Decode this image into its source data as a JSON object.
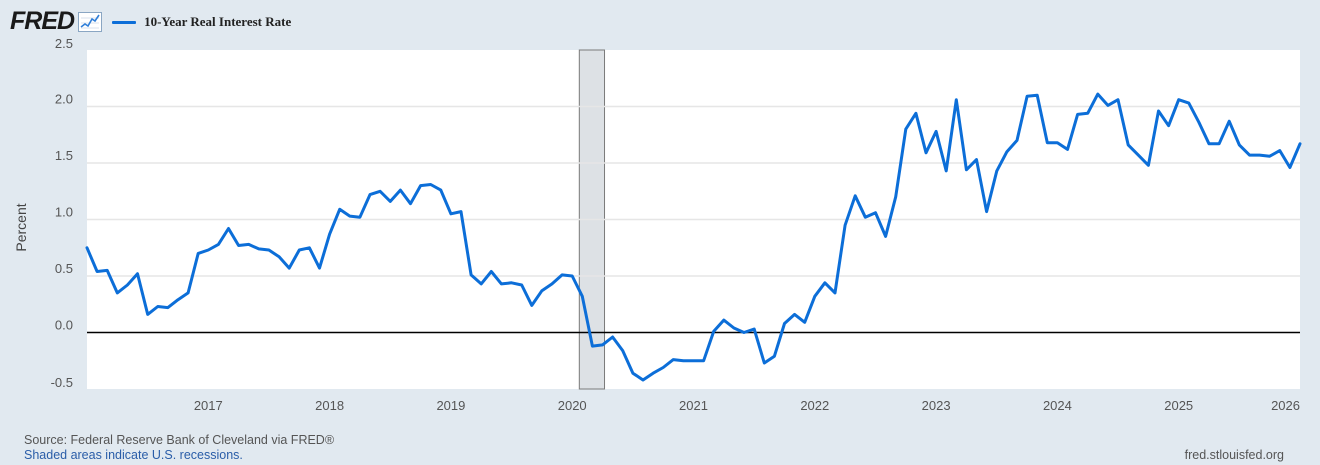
{
  "header": {
    "logo_text": "FRED",
    "legend_label": "10-Year Real Interest Rate",
    "legend_color": "#0c6ed8"
  },
  "footer": {
    "source": "Source: Federal Reserve Bank of Cleveland via FRED®",
    "recession_note": "Shaded areas indicate U.S. recessions.",
    "site": "fred.stlouisfed.org"
  },
  "chart_data": {
    "type": "line",
    "ylabel": "Percent",
    "xlabel": "",
    "ylim": [
      -0.5,
      2.5
    ],
    "xlim": [
      "2016-01",
      "2026-01"
    ],
    "y_ticks": [
      "2.5",
      "2.0",
      "1.5",
      "1.0",
      "0.5",
      "0.0",
      "-0.5"
    ],
    "x_ticks": [
      "2017",
      "2018",
      "2019",
      "2020",
      "2021",
      "2022",
      "2023",
      "2024",
      "2025",
      "2026"
    ],
    "grid": true,
    "zero_line": true,
    "recession_shading": [
      {
        "start": "2020-02",
        "end": "2020-04"
      }
    ],
    "series": [
      {
        "name": "10-Year Real Interest Rate",
        "color": "#0c6ed8",
        "x": [
          "2016-01",
          "2016-02",
          "2016-03",
          "2016-04",
          "2016-05",
          "2016-06",
          "2016-07",
          "2016-08",
          "2016-09",
          "2016-10",
          "2016-11",
          "2016-12",
          "2017-01",
          "2017-02",
          "2017-03",
          "2017-04",
          "2017-05",
          "2017-06",
          "2017-07",
          "2017-08",
          "2017-09",
          "2017-10",
          "2017-11",
          "2017-12",
          "2018-01",
          "2018-02",
          "2018-03",
          "2018-04",
          "2018-05",
          "2018-06",
          "2018-07",
          "2018-08",
          "2018-09",
          "2018-10",
          "2018-11",
          "2018-12",
          "2019-01",
          "2019-02",
          "2019-03",
          "2019-04",
          "2019-05",
          "2019-06",
          "2019-07",
          "2019-08",
          "2019-09",
          "2019-10",
          "2019-11",
          "2019-12",
          "2020-01",
          "2020-02",
          "2020-03",
          "2020-04",
          "2020-05",
          "2020-06",
          "2020-07",
          "2020-08",
          "2020-09",
          "2020-10",
          "2020-11",
          "2020-12",
          "2021-01",
          "2021-02",
          "2021-03",
          "2021-04",
          "2021-05",
          "2021-06",
          "2021-07",
          "2021-08",
          "2021-09",
          "2021-10",
          "2021-11",
          "2021-12",
          "2022-01",
          "2022-02",
          "2022-03",
          "2022-04",
          "2022-05",
          "2022-06",
          "2022-07",
          "2022-08",
          "2022-09",
          "2022-10",
          "2022-11",
          "2022-12",
          "2023-01",
          "2023-02",
          "2023-03",
          "2023-04",
          "2023-05",
          "2023-06",
          "2023-07",
          "2023-08",
          "2023-09",
          "2023-10",
          "2023-11",
          "2023-12",
          "2024-01",
          "2024-02",
          "2024-03",
          "2024-04",
          "2024-05",
          "2024-06",
          "2024-07",
          "2024-08",
          "2024-09",
          "2024-10",
          "2024-11",
          "2024-12",
          "2025-01",
          "2025-02",
          "2025-03",
          "2025-04",
          "2025-05",
          "2025-06",
          "2025-07",
          "2025-08",
          "2025-09",
          "2025-10",
          "2025-11",
          "2025-12",
          "2026-01"
        ],
        "values": [
          0.75,
          0.54,
          0.55,
          0.35,
          0.42,
          0.52,
          0.16,
          0.23,
          0.22,
          0.29,
          0.35,
          0.7,
          0.73,
          0.78,
          0.92,
          0.77,
          0.78,
          0.74,
          0.73,
          0.67,
          0.57,
          0.73,
          0.75,
          0.57,
          0.87,
          1.09,
          1.03,
          1.02,
          1.22,
          1.25,
          1.16,
          1.26,
          1.14,
          1.3,
          1.31,
          1.26,
          1.05,
          1.07,
          0.51,
          0.43,
          0.54,
          0.43,
          0.44,
          0.42,
          0.24,
          0.37,
          0.43,
          0.51,
          0.5,
          0.32,
          -0.12,
          -0.11,
          -0.04,
          -0.16,
          -0.36,
          -0.42,
          -0.36,
          -0.31,
          -0.24,
          -0.25,
          -0.25,
          -0.25,
          0.01,
          0.11,
          0.04,
          0.0,
          0.03,
          -0.27,
          -0.21,
          0.08,
          0.16,
          0.09,
          0.32,
          0.44,
          0.35,
          0.95,
          1.21,
          1.02,
          1.06,
          0.85,
          1.2,
          1.8,
          1.94,
          1.59,
          1.78,
          1.43,
          2.06,
          1.44,
          1.53,
          1.07,
          1.43,
          1.6,
          1.7,
          2.09,
          2.1,
          1.68,
          1.68,
          1.62,
          1.93,
          1.94,
          2.11,
          2.01,
          2.06,
          1.66,
          1.57,
          1.48,
          1.96,
          1.83,
          2.06,
          2.03,
          1.86,
          1.67,
          1.67,
          1.87,
          1.66,
          1.57,
          1.57,
          1.56,
          1.61,
          1.46,
          1.67
        ]
      }
    ]
  }
}
